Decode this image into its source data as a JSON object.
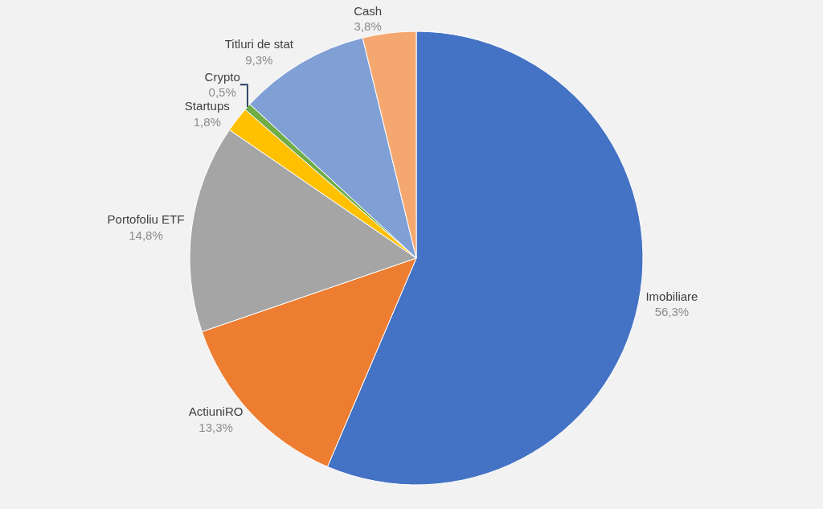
{
  "chart_data": {
    "type": "pie",
    "categories": [
      "Imobiliare",
      "ActiuniRO",
      "Portofoliu ETF",
      "Startups",
      "Crypto",
      "Titluri de stat",
      "Cash"
    ],
    "values": [
      56.3,
      13.3,
      14.8,
      1.8,
      0.5,
      9.3,
      3.8
    ],
    "value_labels": [
      "56,3%",
      "13,3%",
      "14,8%",
      "1,8%",
      "0,5%",
      "9,3%",
      "3,8%"
    ],
    "colors": [
      "#4472c4",
      "#ed7d31",
      "#a5a5a5",
      "#ffc000",
      "#70ad47",
      "#7f9fd5",
      "#f4a870"
    ],
    "legend": false
  }
}
